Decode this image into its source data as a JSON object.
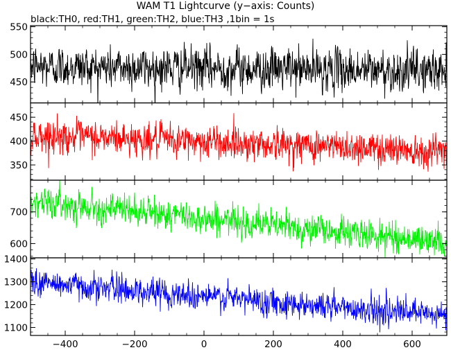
{
  "title": "WAM T1 Lightcurve (y−axis: Counts)",
  "subtitle": "black:TH0, red:TH1, green:TH2, blue:TH3 ,1bin = 1s",
  "chart_data": {
    "type": "line",
    "title": "WAM T1 Lightcurve (y−axis: Counts)",
    "subtitle": "black:TH0, red:TH1, green:TH2, blue:TH3 ,1bin = 1s",
    "xlabel": "",
    "ylabel": "",
    "xlim": [
      -500,
      700
    ],
    "x_ticks": [
      "−400",
      "−200",
      "0",
      "200",
      "400",
      "600"
    ],
    "x_tick_values": [
      -400,
      -200,
      0,
      200,
      400,
      600
    ],
    "bin_seconds": 1,
    "grid": false,
    "panels": [
      {
        "name": "TH0",
        "color": "#000000",
        "ylim": [
          412,
          552
        ],
        "y_ticks": [
          "450",
          "500",
          "550"
        ],
        "y_tick_values": [
          450,
          500,
          550
        ],
        "trend_start": 478,
        "trend_end": 470,
        "noise_sd": 22
      },
      {
        "name": "TH1",
        "color": "#ff0000",
        "ylim": [
          318,
          480
        ],
        "y_ticks": [
          "350",
          "400",
          "450"
        ],
        "y_tick_values": [
          350,
          400,
          450
        ],
        "trend_start": 412,
        "trend_end": 380,
        "noise_sd": 20
      },
      {
        "name": "TH2",
        "color": "#00ee00",
        "ylim": [
          555,
          800
        ],
        "y_ticks": [
          "600",
          "700"
        ],
        "y_tick_values": [
          600,
          700
        ],
        "trend_start": 735,
        "trend_end": 603,
        "noise_sd": 27
      },
      {
        "name": "TH3",
        "color": "#0000ff",
        "ylim": [
          1065,
          1405
        ],
        "y_ticks": [
          "1100",
          "1200",
          "1300",
          "1400"
        ],
        "y_tick_values": [
          1100,
          1200,
          1300,
          1400
        ],
        "trend_start": 1300,
        "trend_end": 1150,
        "noise_sd": 35
      }
    ]
  }
}
